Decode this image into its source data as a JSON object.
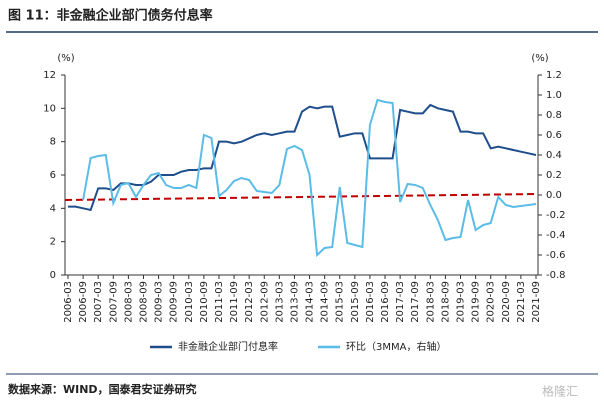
{
  "header": {
    "title": "图 11：非金融企业部门债务付息率"
  },
  "chart_data": {
    "type": "line",
    "y_unit": "(%)",
    "y2_unit": "(%)",
    "categories": [
      "2006-03",
      null,
      "2006-09",
      null,
      "2007-03",
      null,
      "2007-09",
      null,
      "2008-03",
      null,
      "2008-09",
      null,
      "2009-03",
      null,
      "2009-09",
      null,
      "2010-03",
      null,
      "2010-09",
      null,
      "2011-03",
      null,
      "2011-09",
      null,
      "2012-03",
      null,
      "2012-09",
      null,
      "2013-03",
      null,
      "2013-09",
      null,
      "2014-03",
      null,
      "2014-09",
      null,
      "2015-03",
      null,
      "2015-09",
      null,
      "2016-03",
      null,
      "2016-09",
      null,
      "2017-03",
      null,
      "2017-09",
      null,
      "2018-03",
      null,
      "2018-09",
      null,
      "2019-03",
      null,
      "2019-09",
      null,
      "2020-03",
      null,
      "2020-09",
      null,
      "2021-03",
      null,
      "2021-09"
    ],
    "series": [
      {
        "name": "非金融企业部门付息率",
        "color": "#1f4e8c",
        "axis": "y",
        "values": [
          4.1,
          4.1,
          4.0,
          3.9,
          5.2,
          5.2,
          5.1,
          5.5,
          5.5,
          5.4,
          5.4,
          5.6,
          6.0,
          6.0,
          6.0,
          6.2,
          6.3,
          6.3,
          6.4,
          6.4,
          8.0,
          8.0,
          7.9,
          8.0,
          8.2,
          8.4,
          8.5,
          8.4,
          8.5,
          8.6,
          8.6,
          9.8,
          10.1,
          10.0,
          10.1,
          10.1,
          8.3,
          8.4,
          8.5,
          8.5,
          7.0,
          7.0,
          7.0,
          7.0,
          9.9,
          9.8,
          9.7,
          9.7,
          10.2,
          10.0,
          9.9,
          9.8,
          8.6,
          8.6,
          8.5,
          8.5,
          7.6,
          7.7,
          7.6,
          7.5,
          7.4,
          7.3,
          7.2
        ]
      },
      {
        "name": "环比（3MMA，右轴）",
        "color": "#5bbce8",
        "axis": "y2",
        "values": [
          null,
          null,
          -0.05,
          0.37,
          0.39,
          0.4,
          -0.08,
          0.1,
          0.12,
          -0.02,
          0.1,
          0.2,
          0.22,
          0.1,
          0.07,
          0.07,
          0.1,
          0.07,
          0.6,
          0.57,
          -0.01,
          0.05,
          0.14,
          0.17,
          0.15,
          0.04,
          0.03,
          0.02,
          0.1,
          0.46,
          0.49,
          0.45,
          0.2,
          -0.6,
          -0.53,
          -0.52,
          0.08,
          -0.48,
          -0.5,
          -0.52,
          0.7,
          0.95,
          0.93,
          0.92,
          -0.07,
          0.11,
          0.1,
          0.07,
          -0.1,
          -0.25,
          -0.45,
          -0.43,
          -0.42,
          -0.05,
          -0.35,
          -0.3,
          -0.28,
          -0.02,
          -0.1,
          -0.12,
          -0.11,
          -0.1,
          -0.09
        ]
      }
    ],
    "trendline": {
      "axis": "y2",
      "color": "#c00000",
      "values": [
        -0.05,
        0.01
      ]
    },
    "ylim": [
      0,
      12
    ],
    "yticks": [
      0,
      2,
      4,
      6,
      8,
      10,
      12
    ],
    "y2lim": [
      -0.8,
      1.2
    ],
    "y2ticks": [
      -0.8,
      -0.6,
      -0.4,
      -0.2,
      {
        "value": 0,
        "label": "0.0"
      },
      0.2,
      0.4,
      0.6,
      0.8,
      {
        "value": 1,
        "label": "1.0"
      },
      1.2
    ],
    "grid": false,
    "legend": "bottom"
  },
  "footer": {
    "source": "数据来源：WIND，国泰君安证券研究",
    "watermark": "格隆汇"
  }
}
